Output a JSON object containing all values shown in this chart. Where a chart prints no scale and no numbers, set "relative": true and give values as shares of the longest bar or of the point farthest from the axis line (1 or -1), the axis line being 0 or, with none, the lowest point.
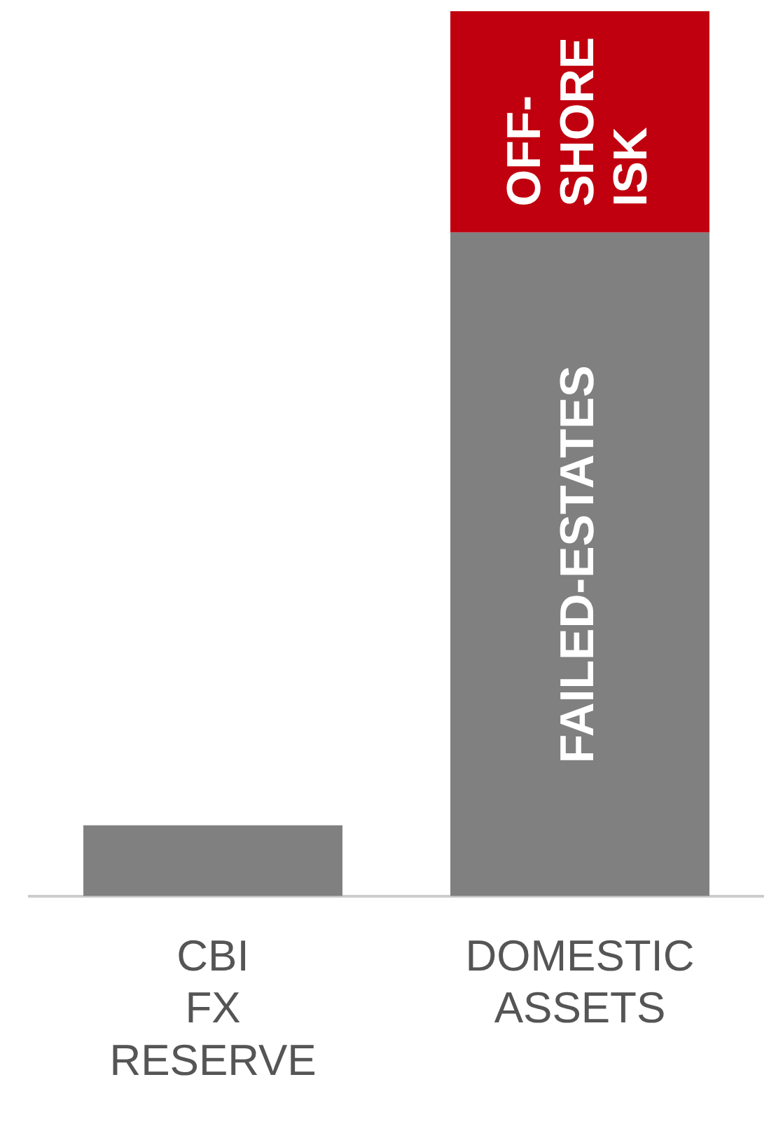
{
  "chart_data": {
    "type": "bar",
    "relative": true,
    "stacked": true,
    "grid": false,
    "legend": false,
    "categories": [
      "CBI FX RESERVE",
      "DOMESTIC ASSETS"
    ],
    "series": [
      {
        "color": "#808080",
        "values": [
          0.08,
          null
        ]
      },
      {
        "name": "FAILED-ESTATES",
        "color": "#808080",
        "values": [
          null,
          0.75
        ]
      },
      {
        "name": "OFF-SHORE ISK",
        "color": "#c0000f",
        "values": [
          null,
          0.25
        ]
      }
    ]
  }
}
